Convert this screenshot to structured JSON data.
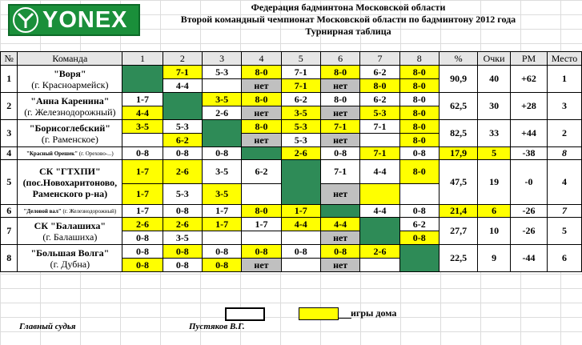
{
  "logo": {
    "text": "YONEX"
  },
  "title": {
    "line1": "Федерация бадминтона Московской области",
    "line2": "Второй командный чемпионат Московской области по бадминтону 2012 года",
    "line3": "Турнирная таблица"
  },
  "headers": {
    "num": "№",
    "team": "Команда",
    "c1": "1",
    "c2": "2",
    "c3": "3",
    "c4": "4",
    "c5": "5",
    "c6": "6",
    "c7": "7",
    "c8": "8",
    "pct": "%",
    "points": "Очки",
    "rm": "РМ",
    "place": "Место"
  },
  "rows": {
    "r1": {
      "num": "1",
      "team": "\"Воря\"",
      "city": "(г. Красноармейск)",
      "pct": "90,9",
      "points": "40",
      "rm": "+62",
      "place": "1",
      "a": {
        "c2": "7-1",
        "c3": "5-3",
        "c4": "8-0",
        "c5": "7-1",
        "c6": "8-0",
        "c7": "6-2",
        "c8": "8-0"
      },
      "b": {
        "c2": "4-4",
        "c4": "нет",
        "c5": "7-1",
        "c6": "нет",
        "c7": "8-0",
        "c8": "8-0"
      }
    },
    "r2": {
      "num": "2",
      "team": "\"Анна Каренина\"",
      "city": "(г. Железнодорожный)",
      "pct": "62,5",
      "points": "30",
      "rm": "+28",
      "place": "3",
      "a": {
        "c1": "1-7",
        "c3": "3-5",
        "c4": "8-0",
        "c5": "6-2",
        "c6": "8-0",
        "c7": "6-2",
        "c8": "8-0"
      },
      "b": {
        "c1": "4-4",
        "c3": "2-6",
        "c4": "нет",
        "c5": "3-5",
        "c6": "нет",
        "c7": "5-3",
        "c8": "8-0"
      }
    },
    "r3": {
      "num": "3",
      "team": "\"Борисоглебский\"",
      "city": "(г. Раменское)",
      "pct": "82,5",
      "points": "33",
      "rm": "+44",
      "place": "2",
      "a": {
        "c1": "3-5",
        "c2": "5-3",
        "c4": "8-0",
        "c5": "5-3",
        "c6": "7-1",
        "c7": "7-1",
        "c8": "8-0"
      },
      "b": {
        "c2": "6-2",
        "c4": "нет",
        "c5": "5-3",
        "c6": "нет",
        "c8": "8-0"
      }
    },
    "r4": {
      "num": "4",
      "team": "\"Красный Орешек\"",
      "city": "(г. Орехово-...)",
      "pct": "17,9",
      "points": "5",
      "rm": "-38",
      "place": "8",
      "a": {
        "c1": "0-8",
        "c2": "0-8",
        "c3": "0-8",
        "c5": "2-6",
        "c6": "0-8",
        "c7": "7-1",
        "c8": "0-8"
      }
    },
    "r5": {
      "num": "5",
      "team": "СК \"ГТХПИ\"",
      "city2": "(пос.Новохаритоново,",
      "city3": "Раменского р-на)",
      "pct": "47,5",
      "points": "19",
      "rm": "-0",
      "place": "4",
      "a": {
        "c1": "1-7",
        "c2": "2-6",
        "c3": "3-5",
        "c4": "6-2",
        "c6": "7-1",
        "c7": "4-4",
        "c8": "8-0"
      },
      "b": {
        "c1": "1-7",
        "c2": "5-3",
        "c3": "3-5",
        "c6": "нет"
      }
    },
    "r6": {
      "num": "6",
      "team": "\"Деловой вал\"",
      "city": "(г. Железнодорожный)",
      "pct": "21,4",
      "points": "6",
      "rm": "-26",
      "place": "7",
      "a": {
        "c1": "1-7",
        "c2": "0-8",
        "c3": "1-7",
        "c4": "8-0",
        "c5": "1-7",
        "c7": "4-4",
        "c8": "0-8"
      }
    },
    "r7": {
      "num": "7",
      "team": "СК \"Балашиха\"",
      "city": "(г. Балашиха)",
      "pct": "27,7",
      "points": "10",
      "rm": "-26",
      "place": "5",
      "a": {
        "c1": "2-6",
        "c2": "2-6",
        "c3": "1-7",
        "c4": "1-7",
        "c5": "4-4",
        "c6": "4-4",
        "c8": "6-2"
      },
      "b": {
        "c1": "0-8",
        "c2": "3-5",
        "c6": "нет",
        "c8": "0-8"
      }
    },
    "r8": {
      "num": "8",
      "team": "\"Большая Волга\"",
      "city": "(г. Дубна)",
      "pct": "22,5",
      "points": "9",
      "rm": "-44",
      "place": "6",
      "a": {
        "c1": "0-8",
        "c2": "0-8",
        "c3": "0-8",
        "c4": "0-8",
        "c5": "0-8",
        "c6": "0-8",
        "c7": "2-6"
      },
      "b": {
        "c1": "0-8",
        "c2": "0-8",
        "c3": "0-8",
        "c4": "нет",
        "c6": "нет"
      }
    }
  },
  "legend": {
    "home_games": "игры дома"
  },
  "footer": {
    "judge_label": "Главный судья",
    "judge_name": "Пустяков В.Г."
  },
  "colors": {
    "yellow": "#ffff00",
    "diag_green": "#2e8b57",
    "gray": "#c0c0c0",
    "red": "#d00000",
    "blue": "#1f5bb5"
  }
}
